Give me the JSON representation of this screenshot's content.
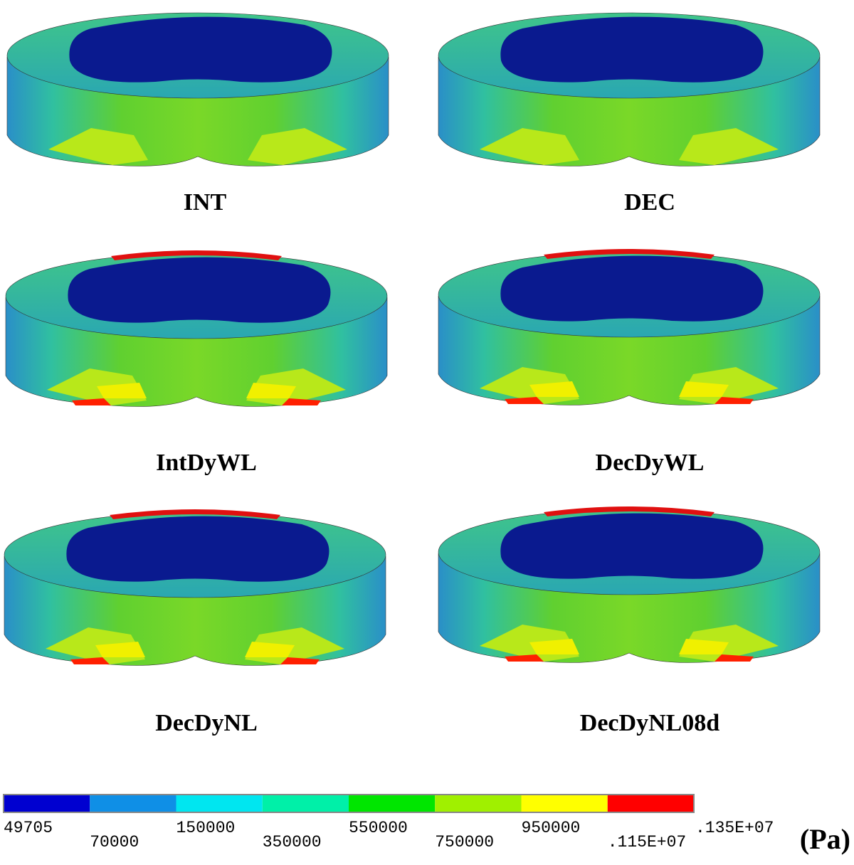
{
  "panels": [
    {
      "label": "INT"
    },
    {
      "label": "DEC"
    },
    {
      "label": "IntDyWL"
    },
    {
      "label": "DecDyWL"
    },
    {
      "label": "DecDyNL"
    },
    {
      "label": "DecDyNL08d"
    }
  ],
  "legend": {
    "colors": [
      "#0000d0",
      "#0f8fe6",
      "#00e6f0",
      "#00f0a8",
      "#00e600",
      "#a0f000",
      "#ffff00",
      "#ff0000"
    ],
    "labels": [
      "49705",
      "70000",
      "150000",
      "350000",
      "550000",
      "750000",
      "950000",
      ".115E+07",
      ".135E+07"
    ],
    "unit": "(Pa)"
  }
}
